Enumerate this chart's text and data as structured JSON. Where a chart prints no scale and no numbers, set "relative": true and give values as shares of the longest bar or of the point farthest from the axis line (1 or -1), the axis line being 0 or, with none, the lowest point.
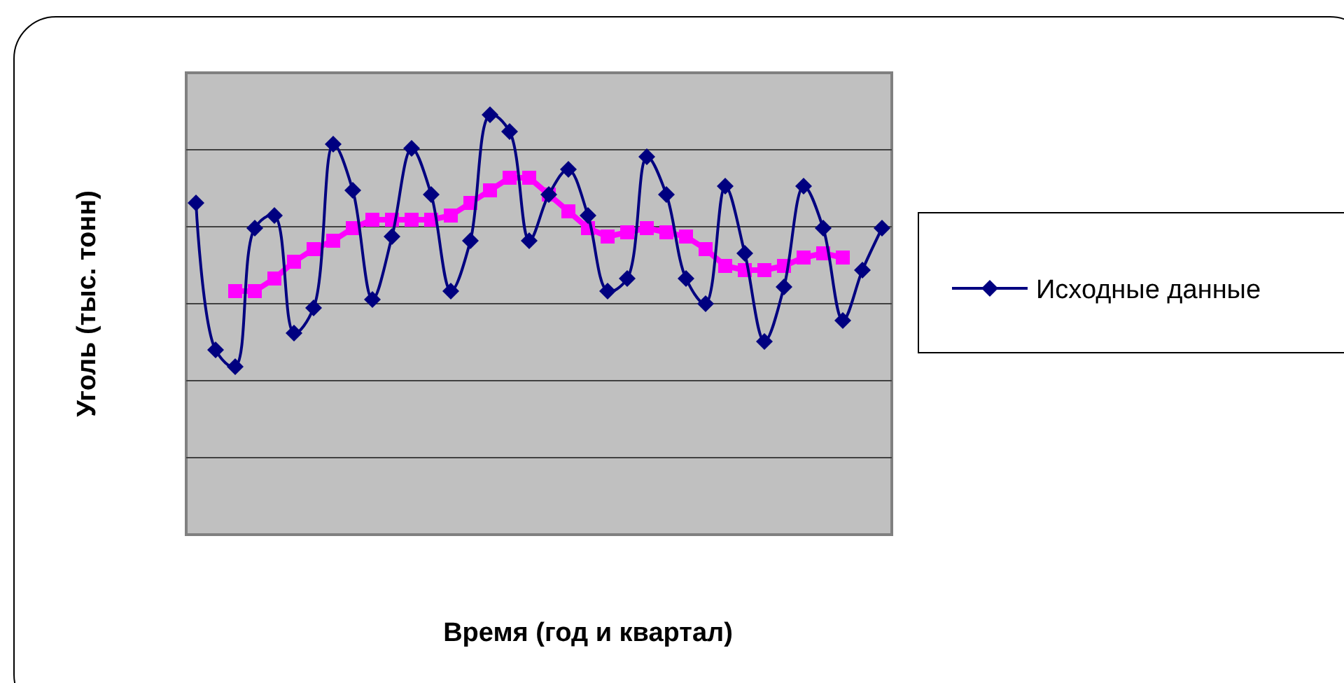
{
  "chart_data": {
    "type": "line",
    "relative": true,
    "xlabel": "Время (год и квартал)",
    "ylabel": "Уголь (тыс. тонн)",
    "grid": true,
    "legend": "right",
    "categories": [
      null,
      null,
      null,
      null,
      null,
      null,
      null,
      null,
      null,
      null,
      null,
      null,
      null,
      null,
      null,
      null,
      null,
      null,
      null,
      null,
      null,
      null,
      null,
      null,
      null,
      null,
      null,
      null,
      null,
      null,
      null,
      null,
      null,
      null,
      null,
      null
    ],
    "series": [
      {
        "name": "Исходные данные",
        "color": "#000080",
        "marker": "diamond",
        "values": [
          0.79,
          0.44,
          0.4,
          0.73,
          0.76,
          0.48,
          0.54,
          0.93,
          0.82,
          0.56,
          0.71,
          0.92,
          0.81,
          0.58,
          0.7,
          1.0,
          0.96,
          0.7,
          0.81,
          0.87,
          0.76,
          0.58,
          0.61,
          0.9,
          0.81,
          0.61,
          0.55,
          0.83,
          0.67,
          0.46,
          0.59,
          0.83,
          0.73,
          0.51,
          0.63,
          0.73
        ]
      },
      {
        "color": "#ff00ff",
        "marker": "square",
        "values": [
          null,
          null,
          0.58,
          0.58,
          0.61,
          0.65,
          0.68,
          0.7,
          0.73,
          0.75,
          0.75,
          0.75,
          0.75,
          0.76,
          0.79,
          0.82,
          0.85,
          0.85,
          0.81,
          0.77,
          0.73,
          0.71,
          0.72,
          0.73,
          0.72,
          0.71,
          0.68,
          0.64,
          0.63,
          0.63,
          0.64,
          0.66,
          0.67,
          0.66,
          null,
          null
        ]
      }
    ]
  }
}
